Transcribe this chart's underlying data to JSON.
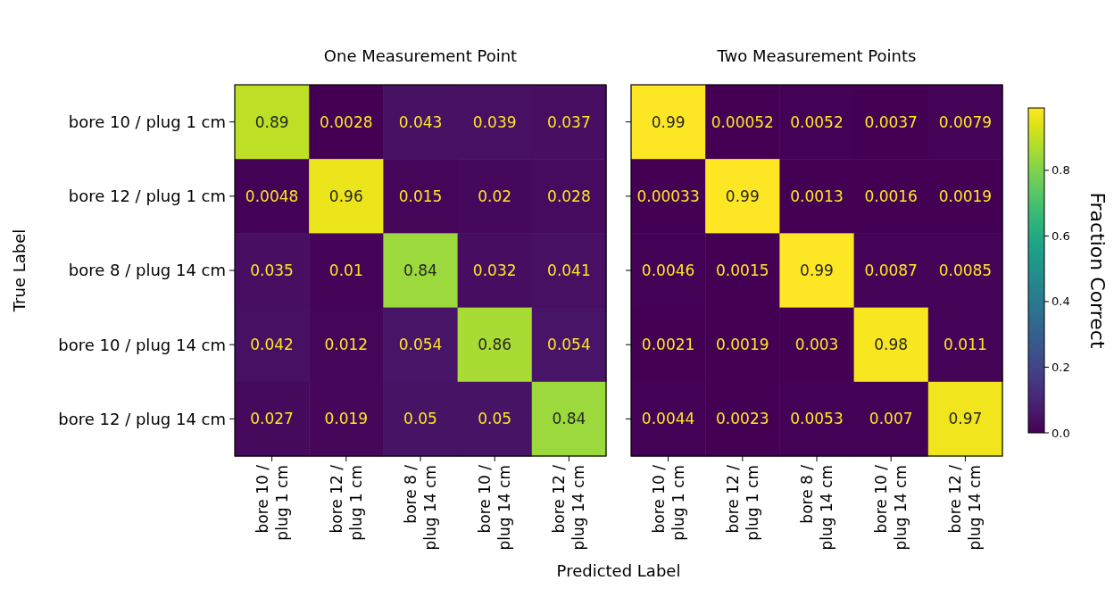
{
  "chart_data": [
    {
      "type": "heatmap",
      "title": "One Measurement Point",
      "xlabel": "Predicted Label",
      "ylabel": "True Label",
      "categories": [
        "bore 10 / plug 1 cm",
        "bore 12 / plug 1 cm",
        "bore 8 / plug 14 cm",
        "bore 10 / plug 14 cm",
        "bore 12 / plug 14 cm"
      ],
      "y_categories": [
        "bore 10 / plug 1 cm",
        "bore 12 / plug 1 cm",
        "bore 8 / plug 14 cm",
        "bore 10 / plug 14 cm",
        "bore 12 / plug 14 cm"
      ],
      "cells": [
        [
          0.89,
          0.0028,
          0.043,
          0.039,
          0.037
        ],
        [
          0.0048,
          0.96,
          0.015,
          0.02,
          0.028
        ],
        [
          0.035,
          0.01,
          0.84,
          0.032,
          0.041
        ],
        [
          0.042,
          0.012,
          0.054,
          0.86,
          0.054
        ],
        [
          0.027,
          0.019,
          0.05,
          0.05,
          0.84
        ]
      ],
      "data_labels": true
    },
    {
      "type": "heatmap",
      "title": "Two Measurement Points",
      "clabel": "Fraction Correct",
      "categories": [
        "bore 10 / plug 1 cm",
        "bore 12 / plug 1 cm",
        "bore 8 / plug 14 cm",
        "bore 10 / plug 14 cm",
        "bore 12 / plug 14 cm"
      ],
      "y_categories": [
        null,
        null,
        null,
        null,
        null
      ],
      "cells": [
        [
          0.99,
          0.00052,
          0.0052,
          0.0037,
          0.0079
        ],
        [
          0.00033,
          0.99,
          0.0013,
          0.0016,
          0.0019
        ],
        [
          0.0046,
          0.0015,
          0.99,
          0.0087,
          0.0085
        ],
        [
          0.0021,
          0.0019,
          0.003,
          0.98,
          0.011
        ],
        [
          0.0044,
          0.0023,
          0.0053,
          0.007,
          0.97
        ]
      ],
      "clim": [
        0,
        0.99
      ],
      "cticks": [
        {
          "value": 0,
          "label": "0.0"
        },
        {
          "value": 0.2,
          "label": "0.2"
        },
        {
          "value": 0.4,
          "label": "0.4"
        },
        {
          "value": 0.6,
          "label": "0.6"
        },
        {
          "value": 0.8,
          "label": "0.8"
        }
      ],
      "tick_labels": "x",
      "data_labels": true
    }
  ]
}
